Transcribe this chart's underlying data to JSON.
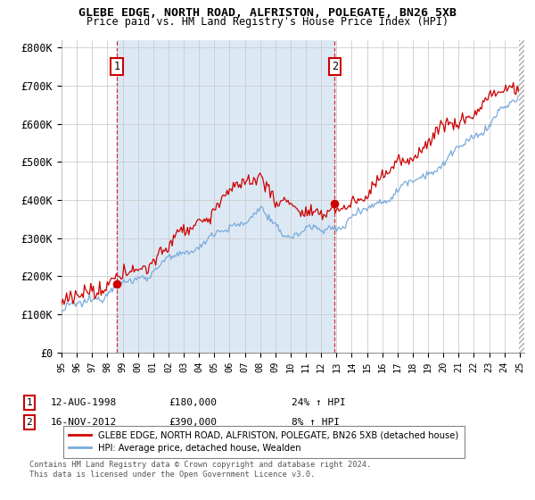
{
  "title_line1": "GLEBE EDGE, NORTH ROAD, ALFRISTON, POLEGATE, BN26 5XB",
  "title_line2": "Price paid vs. HM Land Registry's House Price Index (HPI)",
  "ylim": [
    0,
    820000
  ],
  "yticks": [
    0,
    100000,
    200000,
    300000,
    400000,
    500000,
    600000,
    700000,
    800000
  ],
  "ytick_labels": [
    "£0",
    "£100K",
    "£200K",
    "£300K",
    "£400K",
    "£500K",
    "£600K",
    "£700K",
    "£800K"
  ],
  "legend_label_red": "GLEBE EDGE, NORTH ROAD, ALFRISTON, POLEGATE, BN26 5XB (detached house)",
  "legend_label_blue": "HPI: Average price, detached house, Wealden",
  "sale1_year": 1998.62,
  "sale1_price": 180000,
  "sale2_year": 2012.88,
  "sale2_price": 390000,
  "sale1_annotation": "12-AUG-1998",
  "sale1_price_str": "£180,000",
  "sale1_pct": "24% ↑ HPI",
  "sale2_annotation": "16-NOV-2012",
  "sale2_price_str": "£390,000",
  "sale2_pct": "8% ↑ HPI",
  "footer_line1": "Contains HM Land Registry data © Crown copyright and database right 2024.",
  "footer_line2": "This data is licensed under the Open Government Licence v3.0.",
  "background_color": "#ffffff",
  "grid_color": "#cccccc",
  "shade_color": "#dce9f5",
  "red_color": "#cc0000",
  "blue_color": "#7aabdb",
  "dashed_color": "#cc0000"
}
